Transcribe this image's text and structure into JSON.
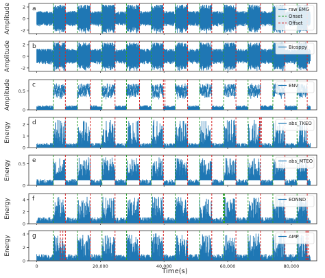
{
  "figure": {
    "xlabel": "Time(s)",
    "x_ticks": [
      0,
      20000,
      40000,
      60000,
      80000
    ],
    "x_tick_labels": [
      "0",
      "20,000",
      "40,000",
      "60,000",
      "80,000"
    ],
    "xlim": [
      -2500,
      88000
    ],
    "onset_color": "#2ca02c",
    "offset_color": "#d62728",
    "signal_color": "#1f77b4",
    "legend_placement": "top-right"
  },
  "chart_data": [
    {
      "type": "line",
      "panel_letter": "a",
      "ylabel": "Amplitude",
      "ylim": [
        -2.6,
        2.6
      ],
      "yticks": [
        -2,
        0,
        2
      ],
      "ytick_labels": [
        "-2",
        "0",
        "2"
      ],
      "legend": [
        "raw EMG",
        "Onset",
        "Offset"
      ],
      "signal": "raw",
      "onsets": [
        5200,
        12800,
        20500,
        28200,
        36000,
        43500,
        51200,
        58800,
        66400,
        74200,
        81800
      ],
      "offsets": [
        9000,
        16800,
        24600,
        32300,
        39800,
        47400,
        55000,
        62600,
        70300,
        78000,
        85000
      ]
    },
    {
      "type": "line",
      "panel_letter": "b",
      "ylabel": "Amplitude",
      "ylim": [
        -2.6,
        2.6
      ],
      "yticks": [
        -2,
        0,
        2
      ],
      "ytick_labels": [
        "-2",
        "0",
        "2"
      ],
      "legend": [
        "Biosppy"
      ],
      "signal": "raw",
      "onsets": [
        5200,
        12800,
        20500,
        28200,
        36000,
        43500,
        51200,
        58800,
        66400,
        74200,
        81800
      ],
      "offsets": [
        7200,
        9000,
        16800,
        24600,
        32300,
        39800,
        47400,
        55000,
        62600,
        70300,
        78000,
        85000
      ]
    },
    {
      "type": "line",
      "panel_letter": "c",
      "ylabel": "Amplitude",
      "ylim": [
        0,
        0.8
      ],
      "yticks": [
        0,
        0.5
      ],
      "ytick_labels": [
        "0",
        "0.5"
      ],
      "legend": [
        "ENV"
      ],
      "signal": "env",
      "onsets": [
        5200,
        12800,
        20500,
        28200,
        36000,
        43500,
        51200,
        58800,
        66400,
        74200,
        81800
      ],
      "offsets": [
        9000,
        16800,
        24600,
        32300,
        39800,
        40300,
        47400,
        55000,
        62600,
        70300,
        78000,
        85000
      ]
    },
    {
      "type": "line",
      "panel_letter": "d",
      "ylabel": "Energy",
      "ylim": [
        0,
        2.6
      ],
      "yticks": [
        0,
        1,
        2
      ],
      "ytick_labels": [
        "0",
        "1",
        "2"
      ],
      "legend": [
        "abs_TKEO"
      ],
      "signal": "tkeo",
      "onsets": [
        5200,
        12800,
        20500,
        28200,
        36000,
        43500,
        51200,
        58800,
        66400,
        74200,
        81800
      ],
      "offsets": [
        9000,
        16800,
        24600,
        32300,
        39800,
        47400,
        55000,
        62600,
        70000,
        70300,
        70600,
        78000,
        85000
      ]
    },
    {
      "type": "line",
      "panel_letter": "e",
      "ylabel": "Energy",
      "ylim": [
        0,
        0.7
      ],
      "yticks": [
        0,
        0.5
      ],
      "ytick_labels": [
        "0",
        "0.5"
      ],
      "legend": [
        "abs_MTEO"
      ],
      "signal": "mteo",
      "onsets": [
        5200,
        12800,
        20500,
        28200,
        36000,
        43500,
        51200,
        58800,
        66400,
        74200,
        81800
      ],
      "offsets": [
        9000,
        16800,
        24600,
        32300,
        39800,
        47400,
        55000,
        62600,
        70300,
        78000,
        85000
      ]
    },
    {
      "type": "line",
      "panel_letter": "f",
      "ylabel": "Energy",
      "ylim": [
        0,
        5
      ],
      "yticks": [
        0,
        2,
        4
      ],
      "ytick_labels": [
        "0",
        "2",
        "4"
      ],
      "legend": [
        "EONND"
      ],
      "signal": "eonnd",
      "onsets": [
        5200,
        12800,
        20500,
        28200,
        36000,
        43500,
        51200,
        58600,
        58800,
        59000,
        66400,
        74200,
        81800
      ],
      "offsets": [
        9000,
        16800,
        24600,
        32300,
        39800,
        47400,
        55000,
        62600,
        70300,
        78000,
        85000
      ]
    },
    {
      "type": "line",
      "panel_letter": "g",
      "ylabel": "Energy",
      "ylim": [
        0,
        4.5
      ],
      "yticks": [
        0,
        2,
        4
      ],
      "ytick_labels": [
        "0",
        "2",
        "4"
      ],
      "legend": [
        "AMP"
      ],
      "signal": "amp",
      "onsets": [
        5200,
        12800,
        20500,
        28200,
        36000,
        43500,
        51200,
        58800,
        66400,
        74200,
        81800
      ],
      "offsets": [
        7400,
        8200,
        9000,
        16800,
        24600,
        32300,
        39800,
        47400,
        55000,
        62600,
        70300,
        78000,
        84600,
        85000,
        85400
      ]
    }
  ]
}
